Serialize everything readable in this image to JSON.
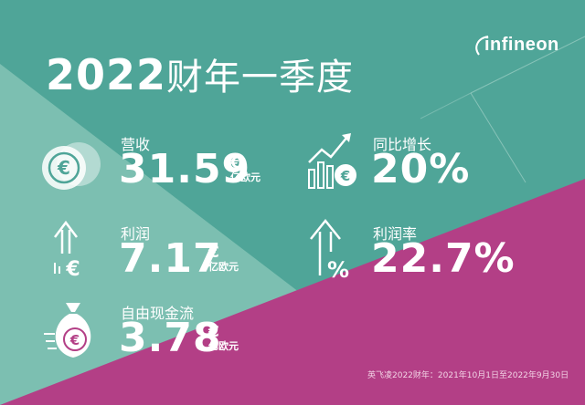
{
  "header": {
    "year": "2022",
    "period": "财年一季度"
  },
  "brand": {
    "logo_text": "infineon"
  },
  "metrics": {
    "revenue": {
      "label": "营收",
      "value": "31.59",
      "currency": "€",
      "unit": "亿欧元"
    },
    "yoy": {
      "label": "同比增长",
      "value": "20%"
    },
    "profit": {
      "label": "利润",
      "value": "7.17",
      "currency": "€",
      "unit": "亿欧元"
    },
    "margin": {
      "label": "利润率",
      "value": "22.7%"
    },
    "fcf": {
      "label": "自由现金流",
      "value": "3.78",
      "currency": "€",
      "unit": "亿欧元"
    }
  },
  "footnote": "英飞凌2022财年：2021年10月1日至2022年9月30日",
  "colors": {
    "teal": "#4fa598",
    "light_teal": "#84c3b5",
    "magenta": "#b33f86"
  },
  "icons": [
    "coins-euro-icon",
    "growth-chart-icon",
    "arrow-up-euro-icon",
    "arrow-up-percent-icon",
    "money-bag-euro-icon"
  ]
}
